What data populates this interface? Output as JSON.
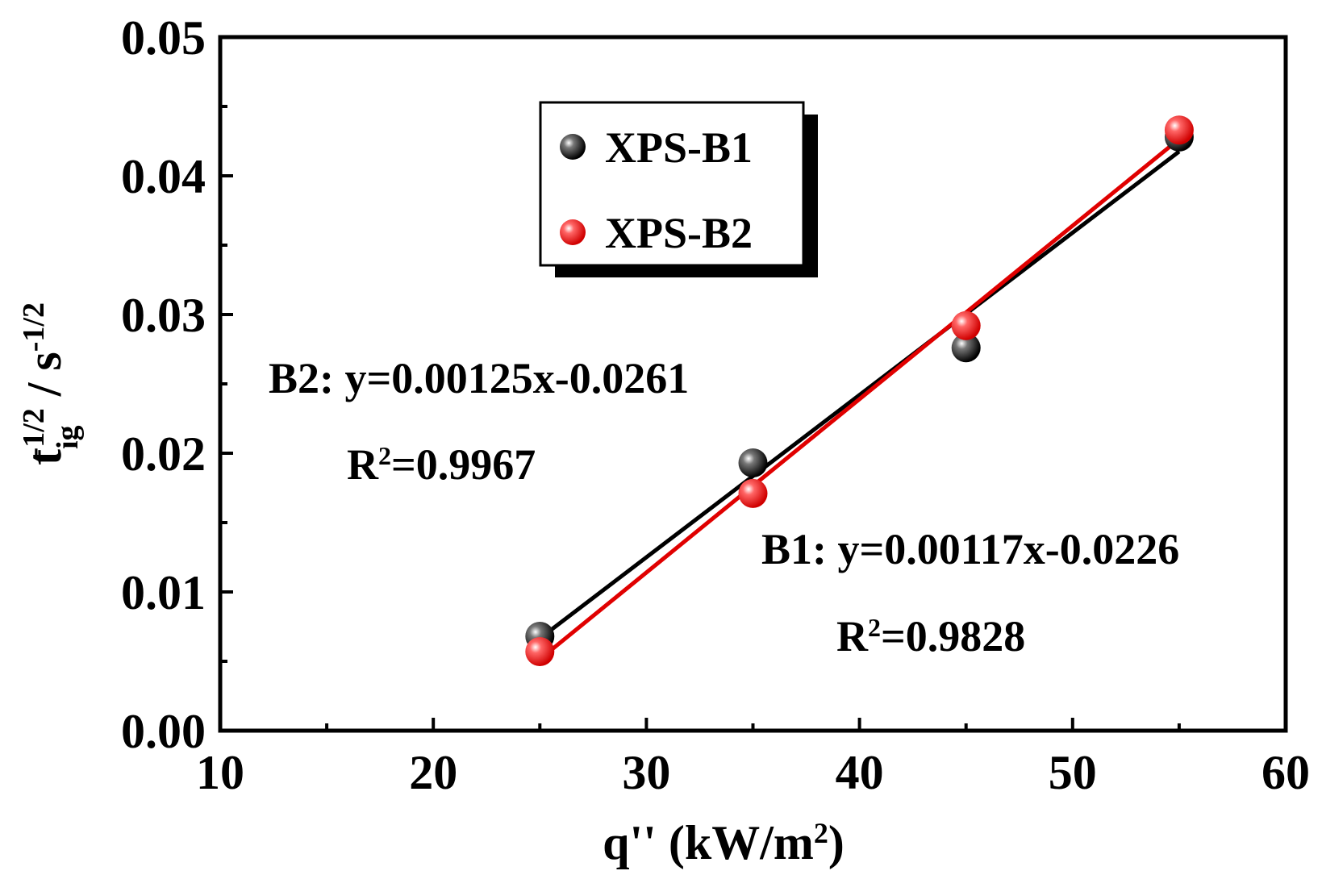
{
  "chart_data": {
    "type": "scatter",
    "xlabel": "q'' (kW/m",
    "xlabel_sup": "2",
    "xlabel_end": ")",
    "ylabel_main": "t",
    "ylabel_sub": "ig",
    "ylabel_sup": "-1/2",
    "ylabel_mid": " / s",
    "ylabel_sup2": "-1/2",
    "xlim": [
      10,
      60
    ],
    "ylim": [
      0.0,
      0.05
    ],
    "xticks": [
      "10",
      "20",
      "30",
      "40",
      "50",
      "60"
    ],
    "yticks": [
      "0.00",
      "0.01",
      "0.02",
      "0.03",
      "0.04",
      "0.05"
    ],
    "grid": false,
    "legend_position": "top-left",
    "series": [
      {
        "name": "XPS-B1",
        "color": "#000000",
        "x": [
          25,
          35,
          45,
          55
        ],
        "y": [
          0.0068,
          0.0193,
          0.0276,
          0.0428
        ],
        "fit": {
          "slope": 0.00117,
          "intercept": -0.0226
        }
      },
      {
        "name": "XPS-B2",
        "color": "#e00000",
        "x": [
          25,
          35,
          45,
          55
        ],
        "y": [
          0.0057,
          0.0171,
          0.0292,
          0.0433
        ],
        "fit": {
          "slope": 0.00125,
          "intercept": -0.0261
        }
      }
    ],
    "annotations": [
      {
        "id": "b2_eq",
        "text": "B2: y=0.00125x-0.0261"
      },
      {
        "id": "b2_r2_prefix",
        "text": "R"
      },
      {
        "id": "b2_r2_sup",
        "text": "2"
      },
      {
        "id": "b2_r2_value",
        "text": "=0.9967"
      },
      {
        "id": "b1_eq",
        "text": "B1: y=0.00117x-0.0226"
      },
      {
        "id": "b1_r2_prefix",
        "text": "R"
      },
      {
        "id": "b1_r2_sup",
        "text": "2"
      },
      {
        "id": "b1_r2_value",
        "text": "=0.9828"
      }
    ]
  }
}
